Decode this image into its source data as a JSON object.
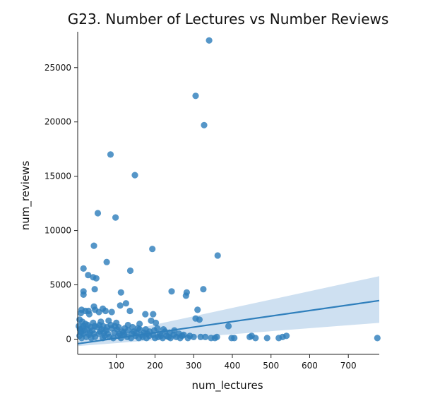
{
  "chart_data": {
    "type": "scatter",
    "title": "G23. Number of Lectures vs Number Reviews",
    "xlabel": "num_lectures",
    "ylabel": "num_reviews",
    "xlim": [
      0,
      780
    ],
    "ylim": [
      -1400,
      28300
    ],
    "x_ticks": [
      100,
      200,
      300,
      400,
      500,
      600,
      700
    ],
    "y_ticks": [
      0,
      5000,
      10000,
      15000,
      20000,
      25000
    ],
    "grid": false,
    "legend": "none",
    "colors": {
      "points": "#2f7fbc",
      "regression_line": "#2f7fbc",
      "confidence_band": "#c5dbee",
      "axes": "#222222"
    },
    "regression": {
      "x_start": 0,
      "y_start": -420,
      "x_end": 780,
      "y_end": 3550,
      "ci_end_upper": 5800,
      "ci_end_lower": 1500,
      "ci_start_upper": -200,
      "ci_start_lower": -640
    },
    "points": [
      [
        340,
        27500
      ],
      [
        305,
        22400
      ],
      [
        327,
        19700
      ],
      [
        85,
        17000
      ],
      [
        148,
        15100
      ],
      [
        52,
        11600
      ],
      [
        98,
        11200
      ],
      [
        42,
        8600
      ],
      [
        193,
        8300
      ],
      [
        362,
        7700
      ],
      [
        75,
        7100
      ],
      [
        15,
        6500
      ],
      [
        27,
        5900
      ],
      [
        40,
        5700
      ],
      [
        48,
        5600
      ],
      [
        136,
        6300
      ],
      [
        243,
        4400
      ],
      [
        282,
        4300
      ],
      [
        325,
        4600
      ],
      [
        280,
        4000
      ],
      [
        15,
        4400
      ],
      [
        15,
        4100
      ],
      [
        112,
        4300
      ],
      [
        44,
        4600
      ],
      [
        125,
        3300
      ],
      [
        110,
        3100
      ],
      [
        42,
        3000
      ],
      [
        65,
        2800
      ],
      [
        45,
        2700
      ],
      [
        10,
        2700
      ],
      [
        20,
        2600
      ],
      [
        28,
        2600
      ],
      [
        8,
        2400
      ],
      [
        30,
        2300
      ],
      [
        55,
        2500
      ],
      [
        72,
        2600
      ],
      [
        88,
        2500
      ],
      [
        135,
        2600
      ],
      [
        175,
        2300
      ],
      [
        195,
        2300
      ],
      [
        310,
        2700
      ],
      [
        305,
        1900
      ],
      [
        315,
        1800
      ],
      [
        190,
        1700
      ],
      [
        202,
        1500
      ],
      [
        160,
        1400
      ],
      [
        130,
        1300
      ],
      [
        100,
        1500
      ],
      [
        80,
        1700
      ],
      [
        60,
        1600
      ],
      [
        40,
        1500
      ],
      [
        20,
        1400
      ],
      [
        12,
        1600
      ],
      [
        5,
        1800
      ],
      [
        12,
        1000
      ],
      [
        25,
        900
      ],
      [
        38,
        800
      ],
      [
        50,
        1100
      ],
      [
        62,
        900
      ],
      [
        74,
        800
      ],
      [
        88,
        1000
      ],
      [
        102,
        900
      ],
      [
        116,
        700
      ],
      [
        130,
        800
      ],
      [
        145,
        700
      ],
      [
        160,
        900
      ],
      [
        172,
        600
      ],
      [
        186,
        700
      ],
      [
        198,
        800
      ],
      [
        212,
        500
      ],
      [
        226,
        700
      ],
      [
        238,
        600
      ],
      [
        250,
        800
      ],
      [
        262,
        500
      ],
      [
        274,
        400
      ],
      [
        290,
        300
      ],
      [
        300,
        200
      ],
      [
        318,
        200
      ],
      [
        330,
        200
      ],
      [
        345,
        100
      ],
      [
        355,
        100
      ],
      [
        360,
        200
      ],
      [
        390,
        1200
      ],
      [
        398,
        100
      ],
      [
        405,
        100
      ],
      [
        445,
        200
      ],
      [
        450,
        300
      ],
      [
        460,
        100
      ],
      [
        490,
        100
      ],
      [
        520,
        100
      ],
      [
        530,
        200
      ],
      [
        540,
        300
      ],
      [
        775,
        100
      ],
      [
        5,
        300
      ],
      [
        10,
        100
      ],
      [
        15,
        500
      ],
      [
        22,
        200
      ],
      [
        30,
        400
      ],
      [
        35,
        100
      ],
      [
        45,
        200
      ],
      [
        55,
        500
      ],
      [
        65,
        100
      ],
      [
        70,
        300
      ],
      [
        82,
        200
      ],
      [
        92,
        100
      ],
      [
        105,
        300
      ],
      [
        112,
        100
      ],
      [
        120,
        400
      ],
      [
        128,
        200
      ],
      [
        138,
        100
      ],
      [
        150,
        300
      ],
      [
        158,
        100
      ],
      [
        168,
        200
      ],
      [
        178,
        100
      ],
      [
        185,
        300
      ],
      [
        200,
        100
      ],
      [
        208,
        200
      ],
      [
        220,
        100
      ],
      [
        230,
        300
      ],
      [
        240,
        100
      ],
      [
        255,
        200
      ],
      [
        265,
        100
      ],
      [
        285,
        100
      ],
      [
        8,
        700
      ],
      [
        18,
        800
      ],
      [
        32,
        600
      ],
      [
        42,
        500
      ],
      [
        58,
        700
      ],
      [
        68,
        600
      ],
      [
        78,
        500
      ],
      [
        95,
        600
      ],
      [
        108,
        500
      ],
      [
        118,
        600
      ],
      [
        140,
        500
      ],
      [
        152,
        600
      ],
      [
        165,
        400
      ],
      [
        180,
        500
      ],
      [
        195,
        400
      ],
      [
        215,
        300
      ],
      [
        235,
        200
      ],
      [
        248,
        400
      ],
      [
        270,
        300
      ],
      [
        3,
        1200
      ],
      [
        6,
        900
      ],
      [
        9,
        600
      ],
      [
        14,
        1200
      ],
      [
        26,
        1300
      ],
      [
        34,
        1100
      ],
      [
        44,
        1200
      ],
      [
        56,
        1300
      ],
      [
        66,
        1200
      ],
      [
        76,
        1100
      ],
      [
        86,
        1300
      ],
      [
        96,
        1200
      ],
      [
        106,
        1100
      ],
      [
        122,
        1000
      ],
      [
        142,
        1100
      ],
      [
        156,
        1000
      ],
      [
        176,
        900
      ],
      [
        206,
        1000
      ],
      [
        222,
        900
      ]
    ]
  }
}
